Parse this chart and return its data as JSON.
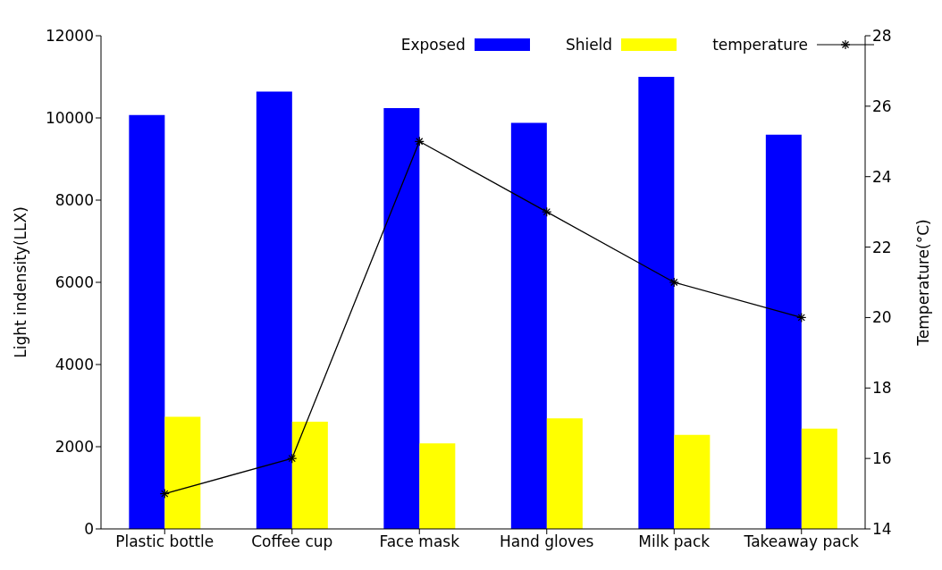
{
  "chart_data": {
    "type": "bar",
    "categories": [
      "Plastic bottle",
      "Coffee cup",
      "Face mask",
      "Hand gloves",
      "Milk pack",
      "Takeaway pack"
    ],
    "series": [
      {
        "name": "Exposed",
        "color": "#0000ff",
        "values": [
          10070,
          10640,
          10240,
          9880,
          11000,
          9590
        ]
      },
      {
        "name": "Shield",
        "color": "#ffff00",
        "values": [
          2730,
          2610,
          2080,
          2690,
          2290,
          2440
        ]
      },
      {
        "name": "temperature",
        "type": "line",
        "axis": "y2",
        "color": "#000000",
        "values": [
          15,
          16,
          25,
          23,
          21,
          20
        ]
      }
    ],
    "ylabel": "Light indensity(LLX)",
    "y2label": "Temperature(°C)",
    "ylim": [
      0,
      12000
    ],
    "yticks": [
      0,
      2000,
      4000,
      6000,
      8000,
      10000,
      12000
    ],
    "y2lim": [
      14,
      28
    ],
    "y2ticks": [
      14,
      16,
      18,
      20,
      22,
      24,
      26,
      28
    ],
    "marker": "cross",
    "line_style": "solid",
    "legend": "top right",
    "grid": false
  }
}
